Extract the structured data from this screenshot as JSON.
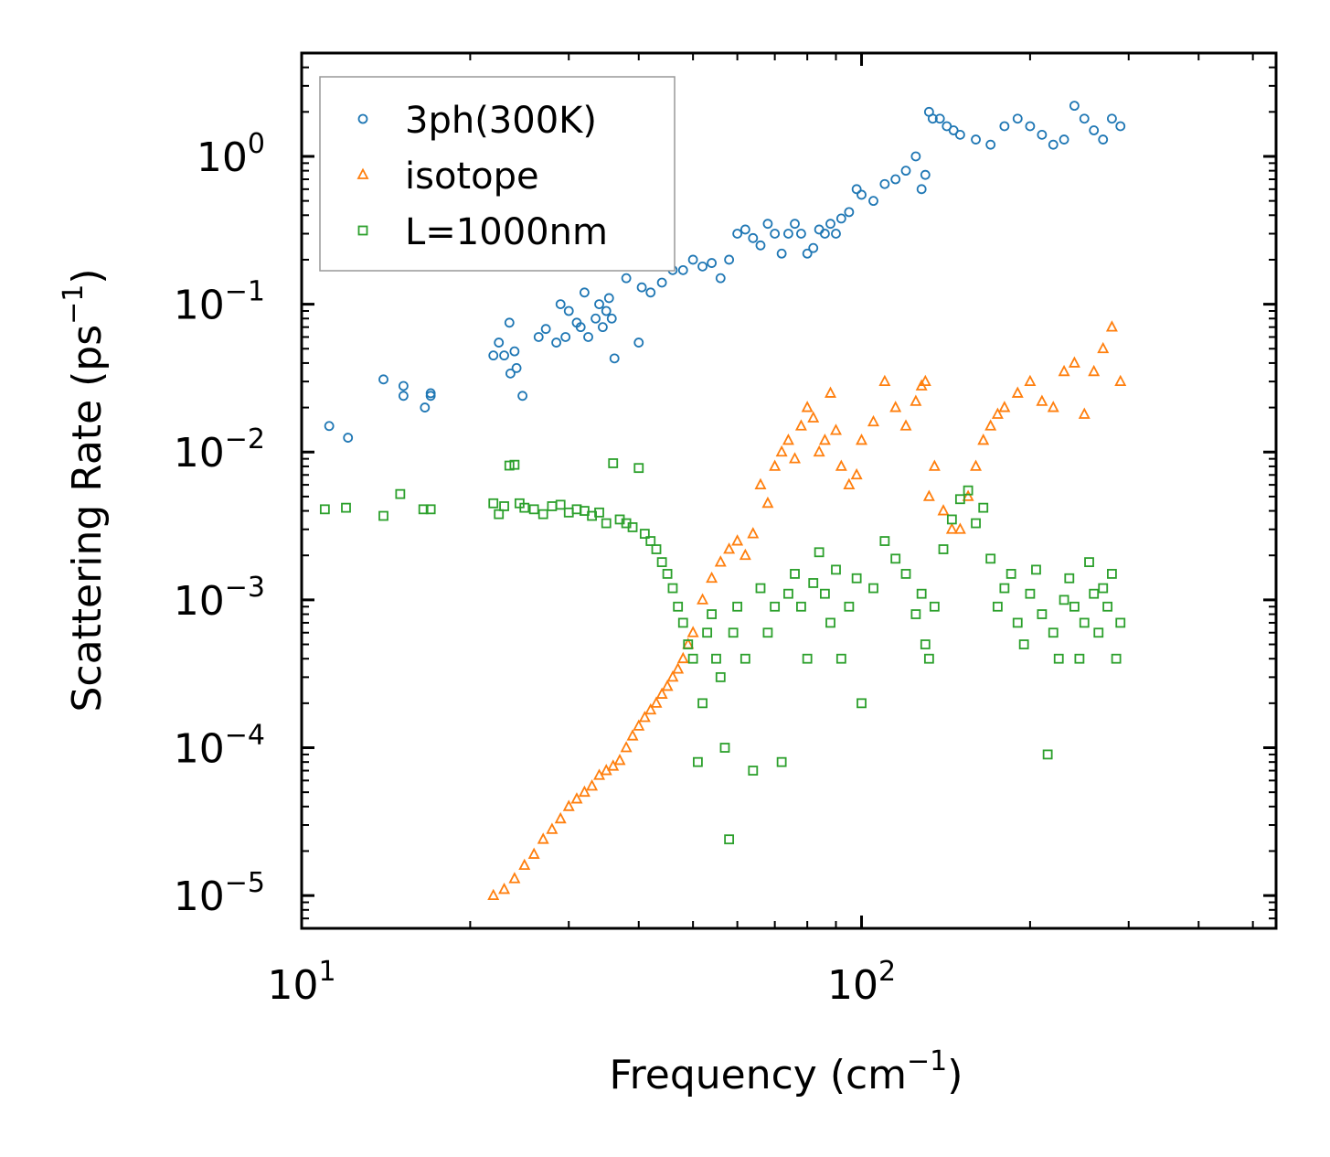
{
  "chart_data": {
    "type": "scatter",
    "title": "",
    "xlabel": "Frequency (cm",
    "xlabel_sup": "−1",
    "xlabel_tail": ")",
    "ylabel": "Scattering Rate (ps",
    "ylabel_sup": "−1",
    "ylabel_tail": ")",
    "xscale": "log",
    "yscale": "log",
    "xlim": [
      10,
      550
    ],
    "ylim": [
      6e-06,
      5
    ],
    "x_ticks": [
      {
        "value": 10,
        "base": "10",
        "exp": "1"
      },
      {
        "value": 100,
        "base": "10",
        "exp": "2"
      }
    ],
    "y_ticks": [
      {
        "value": 1,
        "base": "10",
        "exp": "0"
      },
      {
        "value": 0.1,
        "base": "10",
        "exp": "−1"
      },
      {
        "value": 0.01,
        "base": "10",
        "exp": "−2"
      },
      {
        "value": 0.001,
        "base": "10",
        "exp": "−3"
      },
      {
        "value": 0.0001,
        "base": "10",
        "exp": "−4"
      },
      {
        "value": 1e-05,
        "base": "10",
        "exp": "−5"
      }
    ],
    "legend_position": "top-left",
    "series": [
      {
        "name": "3ph(300K)",
        "marker": "circle",
        "color": "#1f77b4",
        "x": [
          11.2,
          12.1,
          14.0,
          15.2,
          15.2,
          16.6,
          17.0,
          17.0,
          22.0,
          22.5,
          23.0,
          23.5,
          23.6,
          24.0,
          24.2,
          24.8,
          26.5,
          27.3,
          28.5,
          29.0,
          29.6,
          30.0,
          31.0,
          31.5,
          32.0,
          32.5,
          33.5,
          34.0,
          34.5,
          35.0,
          35.4,
          35.8,
          36.2,
          38.0,
          40.0,
          40.5,
          42.0,
          44.0,
          46.0,
          48.0,
          50.0,
          52.0,
          54.0,
          56.0,
          58.0,
          60.0,
          62.0,
          64.0,
          66.0,
          68.0,
          70.0,
          72.0,
          74.0,
          76.0,
          78.0,
          80.0,
          82.0,
          84.0,
          86.0,
          88.0,
          90.0,
          92.0,
          95.0,
          98.0,
          100.0,
          105.0,
          110.0,
          115.0,
          120.0,
          125.0,
          128.0,
          130.0,
          132.0,
          134.0,
          138.0,
          142.0,
          146.0,
          150.0,
          160.0,
          170.0,
          180.0,
          190.0,
          200.0,
          210.0,
          220.0,
          230.0,
          240.0,
          250.0,
          260.0,
          270.0,
          280.0,
          290.0
        ],
        "y": [
          0.015,
          0.0125,
          0.031,
          0.028,
          0.024,
          0.02,
          0.024,
          0.025,
          0.045,
          0.055,
          0.045,
          0.075,
          0.034,
          0.048,
          0.037,
          0.024,
          0.06,
          0.068,
          0.055,
          0.1,
          0.06,
          0.09,
          0.075,
          0.07,
          0.12,
          0.06,
          0.08,
          0.1,
          0.07,
          0.09,
          0.11,
          0.08,
          0.043,
          0.15,
          0.055,
          0.13,
          0.12,
          0.14,
          0.17,
          0.17,
          0.2,
          0.18,
          0.19,
          0.15,
          0.2,
          0.3,
          0.32,
          0.28,
          0.25,
          0.35,
          0.3,
          0.22,
          0.3,
          0.35,
          0.3,
          0.22,
          0.24,
          0.32,
          0.3,
          0.35,
          0.3,
          0.38,
          0.42,
          0.6,
          0.55,
          0.5,
          0.65,
          0.7,
          0.8,
          1.0,
          0.6,
          0.75,
          2.0,
          1.8,
          1.8,
          1.6,
          1.5,
          1.4,
          1.3,
          1.2,
          1.6,
          1.8,
          1.6,
          1.4,
          1.2,
          1.3,
          2.2,
          1.8,
          1.5,
          1.3,
          1.8,
          1.6
        ]
      },
      {
        "name": "isotope",
        "marker": "triangle",
        "color": "#ff7f0e",
        "x": [
          22.0,
          23.0,
          24.0,
          25.0,
          26.0,
          27.0,
          28.0,
          29.0,
          30.0,
          31.0,
          32.0,
          33.0,
          34.0,
          35.0,
          36.0,
          37.0,
          38.0,
          39.0,
          40.0,
          41.0,
          42.0,
          43.0,
          44.0,
          45.0,
          46.0,
          47.0,
          48.0,
          49.0,
          50.0,
          52.0,
          54.0,
          56.0,
          58.0,
          60.0,
          62.0,
          64.0,
          66.0,
          68.0,
          70.0,
          72.0,
          74.0,
          76.0,
          78.0,
          80.0,
          82.0,
          84.0,
          86.0,
          88.0,
          90.0,
          92.0,
          95.0,
          98.0,
          100.0,
          105.0,
          110.0,
          115.0,
          120.0,
          125.0,
          128.0,
          130.0,
          132.0,
          135.0,
          140.0,
          145.0,
          150.0,
          155.0,
          160.0,
          165.0,
          170.0,
          175.0,
          180.0,
          190.0,
          200.0,
          210.0,
          220.0,
          230.0,
          240.0,
          250.0,
          260.0,
          270.0,
          280.0,
          290.0
        ],
        "y": [
          1e-05,
          1.1e-05,
          1.3e-05,
          1.6e-05,
          1.9e-05,
          2.4e-05,
          2.8e-05,
          3.3e-05,
          4e-05,
          4.5e-05,
          5e-05,
          5.5e-05,
          6.5e-05,
          7e-05,
          7.5e-05,
          8.2e-05,
          0.0001,
          0.00012,
          0.00014,
          0.00016,
          0.00018,
          0.0002,
          0.00023,
          0.00026,
          0.0003,
          0.00034,
          0.0004,
          0.0005,
          0.0006,
          0.001,
          0.0014,
          0.0018,
          0.0022,
          0.0025,
          0.002,
          0.0028,
          0.006,
          0.0045,
          0.008,
          0.01,
          0.012,
          0.009,
          0.015,
          0.02,
          0.017,
          0.01,
          0.012,
          0.025,
          0.014,
          0.008,
          0.006,
          0.007,
          0.012,
          0.016,
          0.03,
          0.02,
          0.015,
          0.022,
          0.028,
          0.03,
          0.005,
          0.008,
          0.004,
          0.003,
          0.003,
          0.005,
          0.008,
          0.012,
          0.015,
          0.018,
          0.02,
          0.025,
          0.03,
          0.022,
          0.02,
          0.035,
          0.04,
          0.018,
          0.035,
          0.05,
          0.07,
          0.03
        ]
      },
      {
        "name": "L=1000nm",
        "marker": "square",
        "color": "#2ca02c",
        "x": [
          11.0,
          12.0,
          14.0,
          15.0,
          16.5,
          17.0,
          22.0,
          22.5,
          23.0,
          23.5,
          24.0,
          24.5,
          25.0,
          26.0,
          27.0,
          28.0,
          29.0,
          30.0,
          31.0,
          32.0,
          33.0,
          34.0,
          35.0,
          36.0,
          37.0,
          38.0,
          39.0,
          40.0,
          41.0,
          42.0,
          43.0,
          44.0,
          45.0,
          46.0,
          47.0,
          48.0,
          49.0,
          50.0,
          51.0,
          52.0,
          53.0,
          54.0,
          55.0,
          56.0,
          57.0,
          58.0,
          59.0,
          60.0,
          62.0,
          64.0,
          66.0,
          68.0,
          70.0,
          72.0,
          74.0,
          76.0,
          78.0,
          80.0,
          82.0,
          84.0,
          86.0,
          88.0,
          90.0,
          92.0,
          95.0,
          98.0,
          100.0,
          105.0,
          110.0,
          115.0,
          120.0,
          125.0,
          128.0,
          130.0,
          132.0,
          135.0,
          140.0,
          145.0,
          150.0,
          155.0,
          160.0,
          165.0,
          170.0,
          175.0,
          180.0,
          185.0,
          190.0,
          195.0,
          200.0,
          205.0,
          210.0,
          215.0,
          220.0,
          225.0,
          230.0,
          235.0,
          240.0,
          245.0,
          250.0,
          255.0,
          260.0,
          265.0,
          270.0,
          275.0,
          280.0,
          285.0,
          290.0
        ],
        "y": [
          0.0041,
          0.0042,
          0.0037,
          0.0052,
          0.0041,
          0.0041,
          0.0045,
          0.0038,
          0.0043,
          0.0081,
          0.0082,
          0.0045,
          0.0042,
          0.0041,
          0.0038,
          0.0043,
          0.0044,
          0.0039,
          0.0041,
          0.004,
          0.0037,
          0.0039,
          0.0033,
          0.0084,
          0.0035,
          0.0033,
          0.0031,
          0.0078,
          0.0028,
          0.0025,
          0.0022,
          0.0018,
          0.0015,
          0.0012,
          0.0009,
          0.0007,
          0.0005,
          0.0004,
          8e-05,
          0.0002,
          0.0006,
          0.0008,
          0.0004,
          0.0003,
          0.0001,
          2.4e-05,
          0.0006,
          0.0009,
          0.0004,
          7e-05,
          0.0012,
          0.0006,
          0.0009,
          8e-05,
          0.0011,
          0.0015,
          0.0009,
          0.0004,
          0.0013,
          0.0021,
          0.0011,
          0.0007,
          0.0016,
          0.0004,
          0.0009,
          0.0014,
          0.0002,
          0.0012,
          0.0025,
          0.0019,
          0.0015,
          0.0008,
          0.0011,
          0.0005,
          0.0004,
          0.0009,
          0.0022,
          0.0035,
          0.0048,
          0.0055,
          0.0033,
          0.0042,
          0.0019,
          0.0009,
          0.0012,
          0.0015,
          0.0007,
          0.0005,
          0.0011,
          0.0016,
          0.0008,
          9e-05,
          0.0006,
          0.0004,
          0.001,
          0.0014,
          0.0009,
          0.0004,
          0.0007,
          0.0018,
          0.0011,
          0.0006,
          0.0012,
          0.0009,
          0.0015,
          0.0004,
          0.0007
        ]
      }
    ]
  }
}
